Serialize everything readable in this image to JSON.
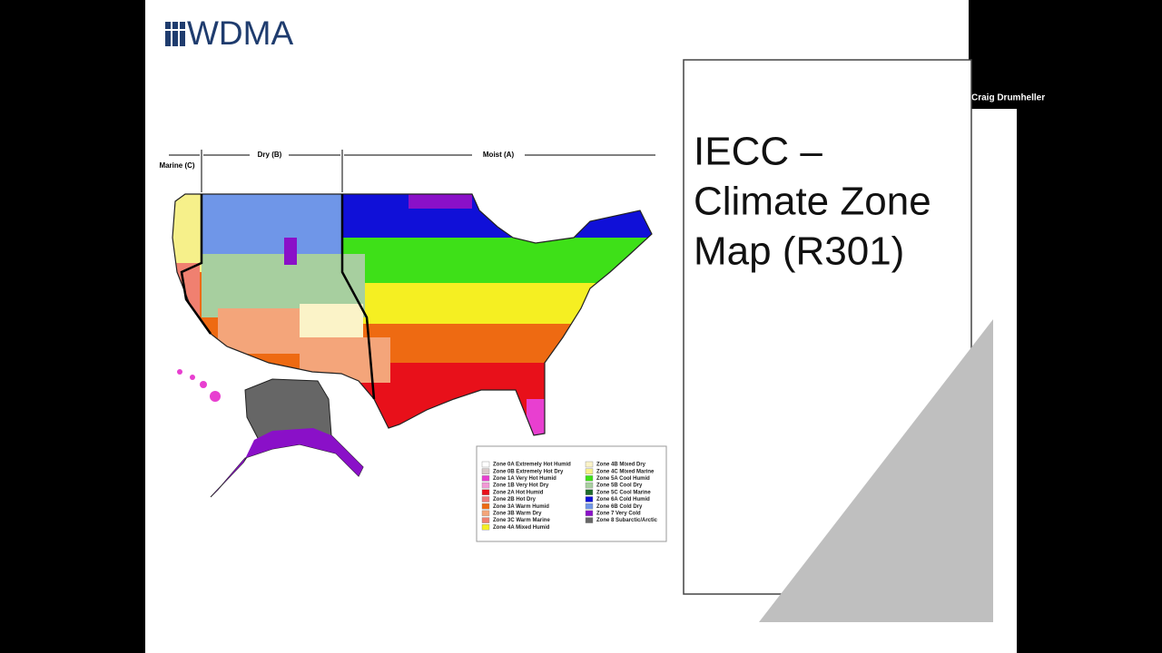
{
  "logo": {
    "text": "WDMA"
  },
  "participant": {
    "name": "Craig Drumheller"
  },
  "slide": {
    "title_lines": [
      "IECC –",
      "Climate Zone",
      "Map (R301)"
    ]
  },
  "map": {
    "regions": [
      "Marine (C)",
      "Dry (B)",
      "Moist (A)"
    ],
    "legend": [
      {
        "label": "Zone 0A Extremely Hot Humid",
        "color": "#ffffff"
      },
      {
        "label": "Zone 0B Extremely Hot Dry",
        "color": "#d9c9c9"
      },
      {
        "label": "Zone 1A Very Hot Humid",
        "color": "#e83fd0"
      },
      {
        "label": "Zone 1B Very Hot Dry",
        "color": "#f29ad6"
      },
      {
        "label": "Zone 2A Hot Humid",
        "color": "#e8101a"
      },
      {
        "label": "Zone 2B Hot Dry",
        "color": "#ee7b7b"
      },
      {
        "label": "Zone 3A Warm Humid",
        "color": "#ee6a12"
      },
      {
        "label": "Zone 3B Warm Dry",
        "color": "#f4a57a"
      },
      {
        "label": "Zone 3C Warm Marine",
        "color": "#f08070"
      },
      {
        "label": "Zone 4A Mixed Humid",
        "color": "#f5ef22"
      },
      {
        "label": "Zone 4B Mixed Dry",
        "color": "#fbf3c8"
      },
      {
        "label": "Zone 4C Mixed Marine",
        "color": "#f6f08a"
      },
      {
        "label": "Zone 5A Cool Humid",
        "color": "#3ee018"
      },
      {
        "label": "Zone 5B Cool Dry",
        "color": "#a7cf9f"
      },
      {
        "label": "Zone 5C Cool Marine",
        "color": "#1f6b2c"
      },
      {
        "label": "Zone 6A Cold Humid",
        "color": "#1010d8"
      },
      {
        "label": "Zone 6B Cold Dry",
        "color": "#6f96e8"
      },
      {
        "label": "Zone 7 Very Cold",
        "color": "#8a10c8"
      },
      {
        "label": "Zone 8 Subarctic/Arctic",
        "color": "#666666"
      }
    ]
  }
}
